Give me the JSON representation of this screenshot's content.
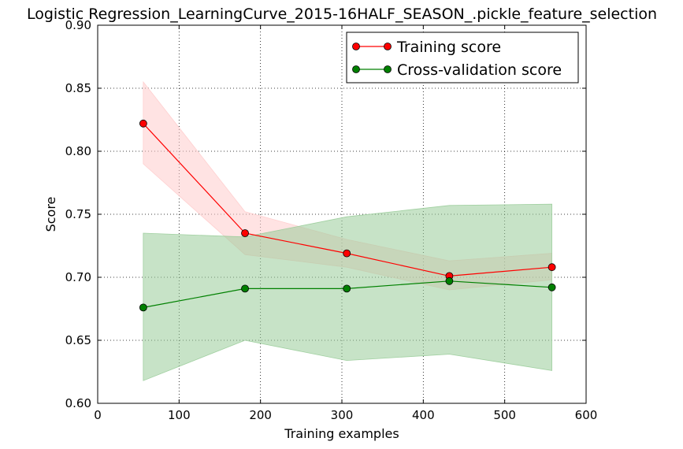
{
  "chart_data": {
    "type": "line",
    "title": "Logistic Regression_LearningCurve_2015-16HALF_SEASON_.pickle_feature_selection",
    "xlabel": "Training examples",
    "ylabel": "Score",
    "xlim": [
      0,
      600
    ],
    "ylim": [
      0.6,
      0.9
    ],
    "xticks": [
      0,
      100,
      200,
      300,
      400,
      500,
      600
    ],
    "yticks": [
      0.6,
      0.65,
      0.7,
      0.75,
      0.8,
      0.85,
      0.9
    ],
    "xtick_labels": [
      "0",
      "100",
      "200",
      "300",
      "400",
      "500",
      "600"
    ],
    "ytick_labels": [
      "0.60",
      "0.65",
      "0.70",
      "0.75",
      "0.80",
      "0.85",
      "0.90"
    ],
    "grid": true,
    "legend_position": "top-right",
    "x": [
      56,
      181,
      306,
      432,
      558
    ],
    "series": [
      {
        "name": "Training score",
        "color": "#ff0000",
        "band_color": "#ffcccc",
        "mean": [
          0.822,
          0.735,
          0.719,
          0.701,
          0.708
        ],
        "upper": [
          0.855,
          0.752,
          0.73,
          0.713,
          0.719
        ],
        "lower": [
          0.79,
          0.718,
          0.708,
          0.69,
          0.698
        ]
      },
      {
        "name": "Cross-validation score",
        "color": "#008000",
        "band_color": "#99cc99",
        "mean": [
          0.676,
          0.691,
          0.691,
          0.697,
          0.692
        ],
        "upper": [
          0.735,
          0.732,
          0.748,
          0.757,
          0.758
        ],
        "lower": [
          0.618,
          0.65,
          0.634,
          0.639,
          0.626
        ]
      }
    ]
  }
}
